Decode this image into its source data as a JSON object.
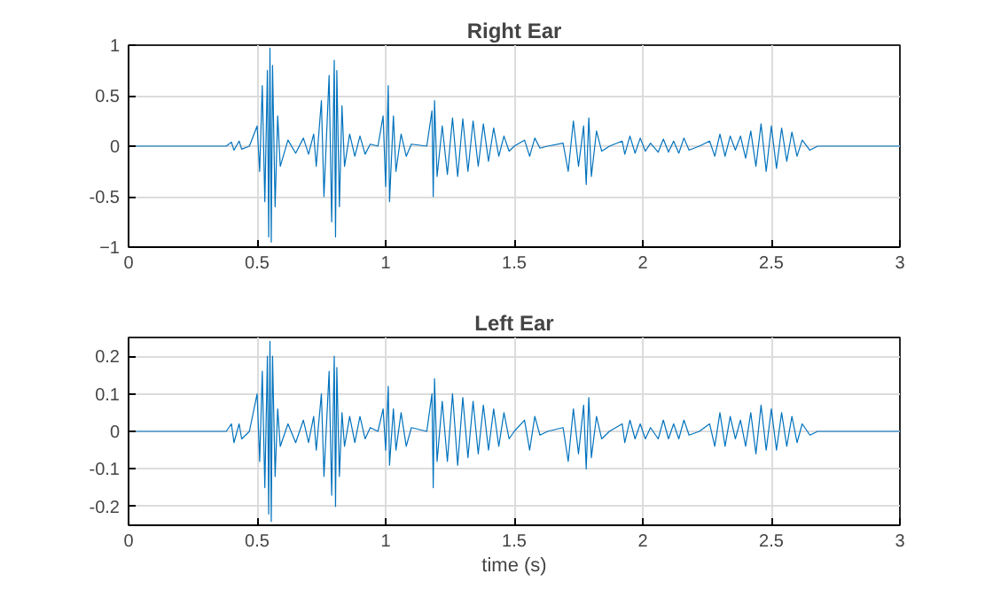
{
  "chart_data": [
    {
      "type": "line",
      "title": "Right Ear",
      "xlim": [
        0,
        3
      ],
      "xticks": [
        0,
        {
          "value": 0.5,
          "label": "0.5"
        },
        1,
        {
          "value": 1.5,
          "label": "1.5"
        },
        2,
        {
          "value": 2.5,
          "label": "2.5"
        },
        3
      ],
      "ylim": [
        -1,
        1
      ],
      "yticks": [
        -1,
        {
          "value": -0.5,
          "label": "-0.5"
        },
        0,
        {
          "value": 0.5,
          "label": "0.5"
        },
        1
      ],
      "grid": true,
      "series": [
        {
          "color": "#0072bd",
          "x": [
            0,
            0.38,
            0.4,
            0.41,
            0.43,
            0.44,
            0.47,
            0.5,
            0.51,
            0.52,
            0.53,
            0.54,
            0.545,
            0.55,
            0.555,
            0.56,
            0.57,
            0.58,
            0.59,
            0.62,
            0.65,
            0.68,
            0.7,
            0.72,
            0.73,
            0.75,
            0.76,
            0.78,
            0.79,
            0.8,
            0.805,
            0.81,
            0.82,
            0.83,
            0.84,
            0.86,
            0.88,
            0.9,
            0.92,
            0.94,
            0.97,
            0.99,
            1.0,
            1.01,
            1.015,
            1.03,
            1.04,
            1.06,
            1.08,
            1.1,
            1.16,
            1.18,
            1.185,
            1.19,
            1.2,
            1.22,
            1.24,
            1.26,
            1.28,
            1.3,
            1.32,
            1.34,
            1.36,
            1.38,
            1.4,
            1.42,
            1.44,
            1.46,
            1.48,
            1.5,
            1.54,
            1.56,
            1.58,
            1.6,
            1.63,
            1.69,
            1.71,
            1.73,
            1.75,
            1.77,
            1.78,
            1.79,
            1.8,
            1.82,
            1.84,
            1.87,
            1.92,
            1.93,
            1.95,
            1.97,
            1.99,
            2.01,
            2.03,
            2.06,
            2.08,
            2.1,
            2.12,
            2.14,
            2.16,
            2.18,
            2.22,
            2.26,
            2.28,
            2.3,
            2.32,
            2.34,
            2.36,
            2.38,
            2.4,
            2.42,
            2.44,
            2.46,
            2.48,
            2.5,
            2.52,
            2.54,
            2.56,
            2.58,
            2.6,
            2.62,
            2.65,
            2.68,
            3.0
          ],
          "values": [
            0,
            0,
            0.04,
            -0.04,
            0.05,
            -0.03,
            0,
            0.2,
            -0.25,
            0.6,
            -0.55,
            0.75,
            -0.9,
            0.97,
            -0.95,
            0.8,
            -0.6,
            0.3,
            -0.2,
            0.06,
            -0.07,
            0.08,
            -0.08,
            0.12,
            -0.2,
            0.45,
            -0.5,
            0.7,
            -0.75,
            0.85,
            -0.9,
            0.75,
            -0.6,
            0.4,
            -0.2,
            0.12,
            -0.1,
            0.1,
            -0.08,
            0.02,
            0,
            0.3,
            -0.4,
            0.6,
            -0.55,
            0.3,
            -0.25,
            0.12,
            -0.1,
            0.02,
            0,
            0.35,
            -0.5,
            0.45,
            -0.3,
            0.2,
            -0.28,
            0.28,
            -0.3,
            0.27,
            -0.25,
            0.25,
            -0.2,
            0.22,
            -0.15,
            0.18,
            -0.1,
            0.1,
            -0.05,
            0,
            0.06,
            -0.1,
            0.08,
            -0.02,
            0,
            0.03,
            -0.25,
            0.25,
            -0.2,
            0.2,
            -0.38,
            0.28,
            -0.3,
            0.15,
            -0.05,
            0,
            0.05,
            -0.08,
            0.1,
            -0.07,
            0.08,
            -0.05,
            0.03,
            -0.06,
            0.07,
            -0.06,
            0.05,
            -0.07,
            0.08,
            -0.04,
            0,
            0.05,
            -0.1,
            0.12,
            -0.1,
            0.1,
            -0.04,
            0.1,
            -0.12,
            0.15,
            -0.2,
            0.22,
            -0.25,
            0.2,
            -0.22,
            0.18,
            -0.15,
            0.14,
            -0.1,
            0.06,
            -0.04,
            0,
            0
          ]
        }
      ]
    },
    {
      "type": "line",
      "title": "Left Ear",
      "xlabel": "time (s)",
      "xlim": [
        0,
        3
      ],
      "xticks": [
        0,
        {
          "value": 0.5,
          "label": "0.5"
        },
        1,
        {
          "value": 1.5,
          "label": "1.5"
        },
        2,
        {
          "value": 2.5,
          "label": "2.5"
        },
        3
      ],
      "ylim": [
        -0.25,
        0.25
      ],
      "yticks": [
        {
          "value": -0.2,
          "label": "-0.2"
        },
        {
          "value": -0.1,
          "label": "-0.1"
        },
        0,
        {
          "value": 0.1,
          "label": "0.1"
        },
        {
          "value": 0.2,
          "label": "0.2"
        }
      ],
      "grid": true,
      "series": [
        {
          "color": "#0072bd",
          "x": [
            0,
            0.38,
            0.4,
            0.41,
            0.43,
            0.44,
            0.47,
            0.5,
            0.51,
            0.52,
            0.53,
            0.54,
            0.545,
            0.55,
            0.555,
            0.56,
            0.57,
            0.58,
            0.59,
            0.62,
            0.65,
            0.68,
            0.7,
            0.72,
            0.73,
            0.75,
            0.76,
            0.78,
            0.79,
            0.8,
            0.805,
            0.81,
            0.82,
            0.83,
            0.84,
            0.86,
            0.88,
            0.9,
            0.92,
            0.94,
            0.97,
            0.99,
            1.0,
            1.01,
            1.015,
            1.03,
            1.04,
            1.06,
            1.08,
            1.1,
            1.16,
            1.18,
            1.185,
            1.19,
            1.2,
            1.22,
            1.24,
            1.26,
            1.28,
            1.3,
            1.32,
            1.34,
            1.36,
            1.38,
            1.4,
            1.42,
            1.44,
            1.46,
            1.48,
            1.5,
            1.54,
            1.56,
            1.58,
            1.6,
            1.63,
            1.69,
            1.71,
            1.73,
            1.75,
            1.77,
            1.78,
            1.79,
            1.8,
            1.82,
            1.84,
            1.87,
            1.92,
            1.93,
            1.95,
            1.97,
            1.99,
            2.01,
            2.03,
            2.06,
            2.08,
            2.1,
            2.12,
            2.14,
            2.16,
            2.18,
            2.22,
            2.26,
            2.28,
            2.3,
            2.32,
            2.34,
            2.36,
            2.38,
            2.4,
            2.42,
            2.44,
            2.46,
            2.48,
            2.5,
            2.52,
            2.54,
            2.56,
            2.58,
            2.6,
            2.62,
            2.65,
            2.68,
            3.0
          ],
          "values": [
            0,
            0,
            0.02,
            -0.03,
            0.02,
            -0.02,
            0,
            0.1,
            -0.08,
            0.16,
            -0.15,
            0.2,
            -0.22,
            0.24,
            -0.24,
            0.2,
            -0.12,
            0.06,
            -0.04,
            0.02,
            -0.03,
            0.03,
            -0.03,
            0.04,
            -0.05,
            0.1,
            -0.12,
            0.16,
            -0.17,
            0.2,
            -0.2,
            0.17,
            -0.12,
            0.05,
            -0.04,
            0.04,
            -0.03,
            0.04,
            -0.02,
            0.01,
            0,
            0.06,
            -0.05,
            0.12,
            -0.09,
            0.06,
            -0.05,
            0.05,
            -0.04,
            0.01,
            0,
            0.1,
            -0.15,
            0.14,
            -0.08,
            0.08,
            -0.08,
            0.1,
            -0.09,
            0.09,
            -0.07,
            0.08,
            -0.06,
            0.07,
            -0.05,
            0.06,
            -0.04,
            0.05,
            -0.02,
            0,
            0.03,
            -0.05,
            0.04,
            -0.01,
            0,
            0.01,
            -0.08,
            0.06,
            -0.06,
            0.07,
            -0.1,
            0.09,
            -0.07,
            0.04,
            -0.02,
            0,
            0.02,
            -0.03,
            0.03,
            -0.02,
            0.02,
            -0.02,
            0.01,
            -0.02,
            0.03,
            -0.02,
            0.02,
            -0.02,
            0.03,
            -0.01,
            0,
            0.02,
            -0.04,
            0.05,
            -0.04,
            0.04,
            -0.02,
            0.03,
            -0.04,
            0.05,
            -0.06,
            0.07,
            -0.05,
            0.06,
            -0.05,
            0.05,
            -0.04,
            0.04,
            -0.03,
            0.02,
            -0.01,
            0,
            0
          ]
        }
      ]
    }
  ]
}
